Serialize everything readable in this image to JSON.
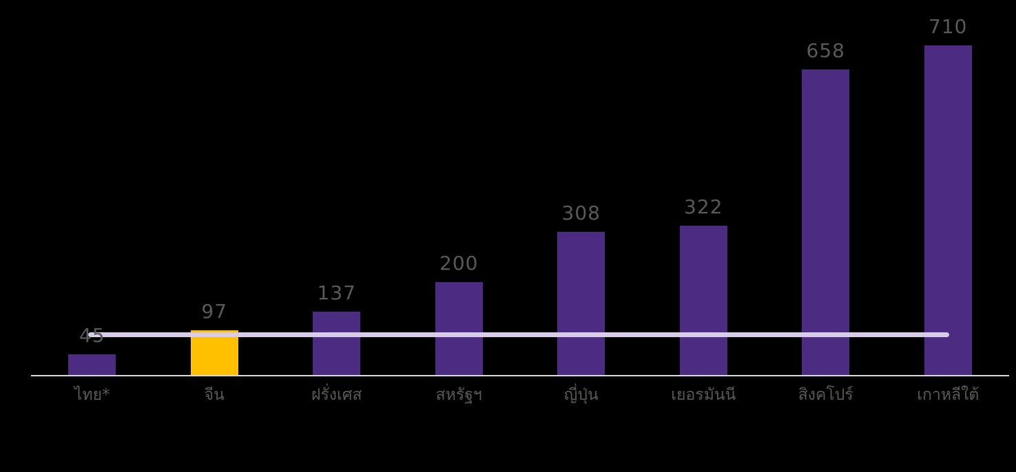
{
  "chart_data": {
    "type": "bar",
    "title": "",
    "xlabel": "",
    "ylabel": "",
    "categories": [
      "ไทย*",
      "จีน",
      "ฝรั่งเศส",
      "สหรัฐฯ",
      "ญี่ปุ่น",
      "เยอรมันนี",
      "สิงคโปร์",
      "เกาหลีใต้"
    ],
    "values": [
      45,
      97,
      137,
      200,
      308,
      322,
      658,
      710
    ],
    "highlight_index": 1,
    "ylim": [
      0,
      810
    ],
    "grid": false,
    "legend": "none",
    "axis_labels_visible": false,
    "data_labels": "outside-end",
    "reference_line": {
      "value": 87,
      "label": ""
    },
    "colors": {
      "background": "#000000",
      "bar": "#4B2C82",
      "highlight_bar": "#FFC000",
      "value_label_text": "#595959",
      "category_label_text": "#595959",
      "axis_line": "#DADADA",
      "reference_line": "#D8CCE9"
    }
  }
}
